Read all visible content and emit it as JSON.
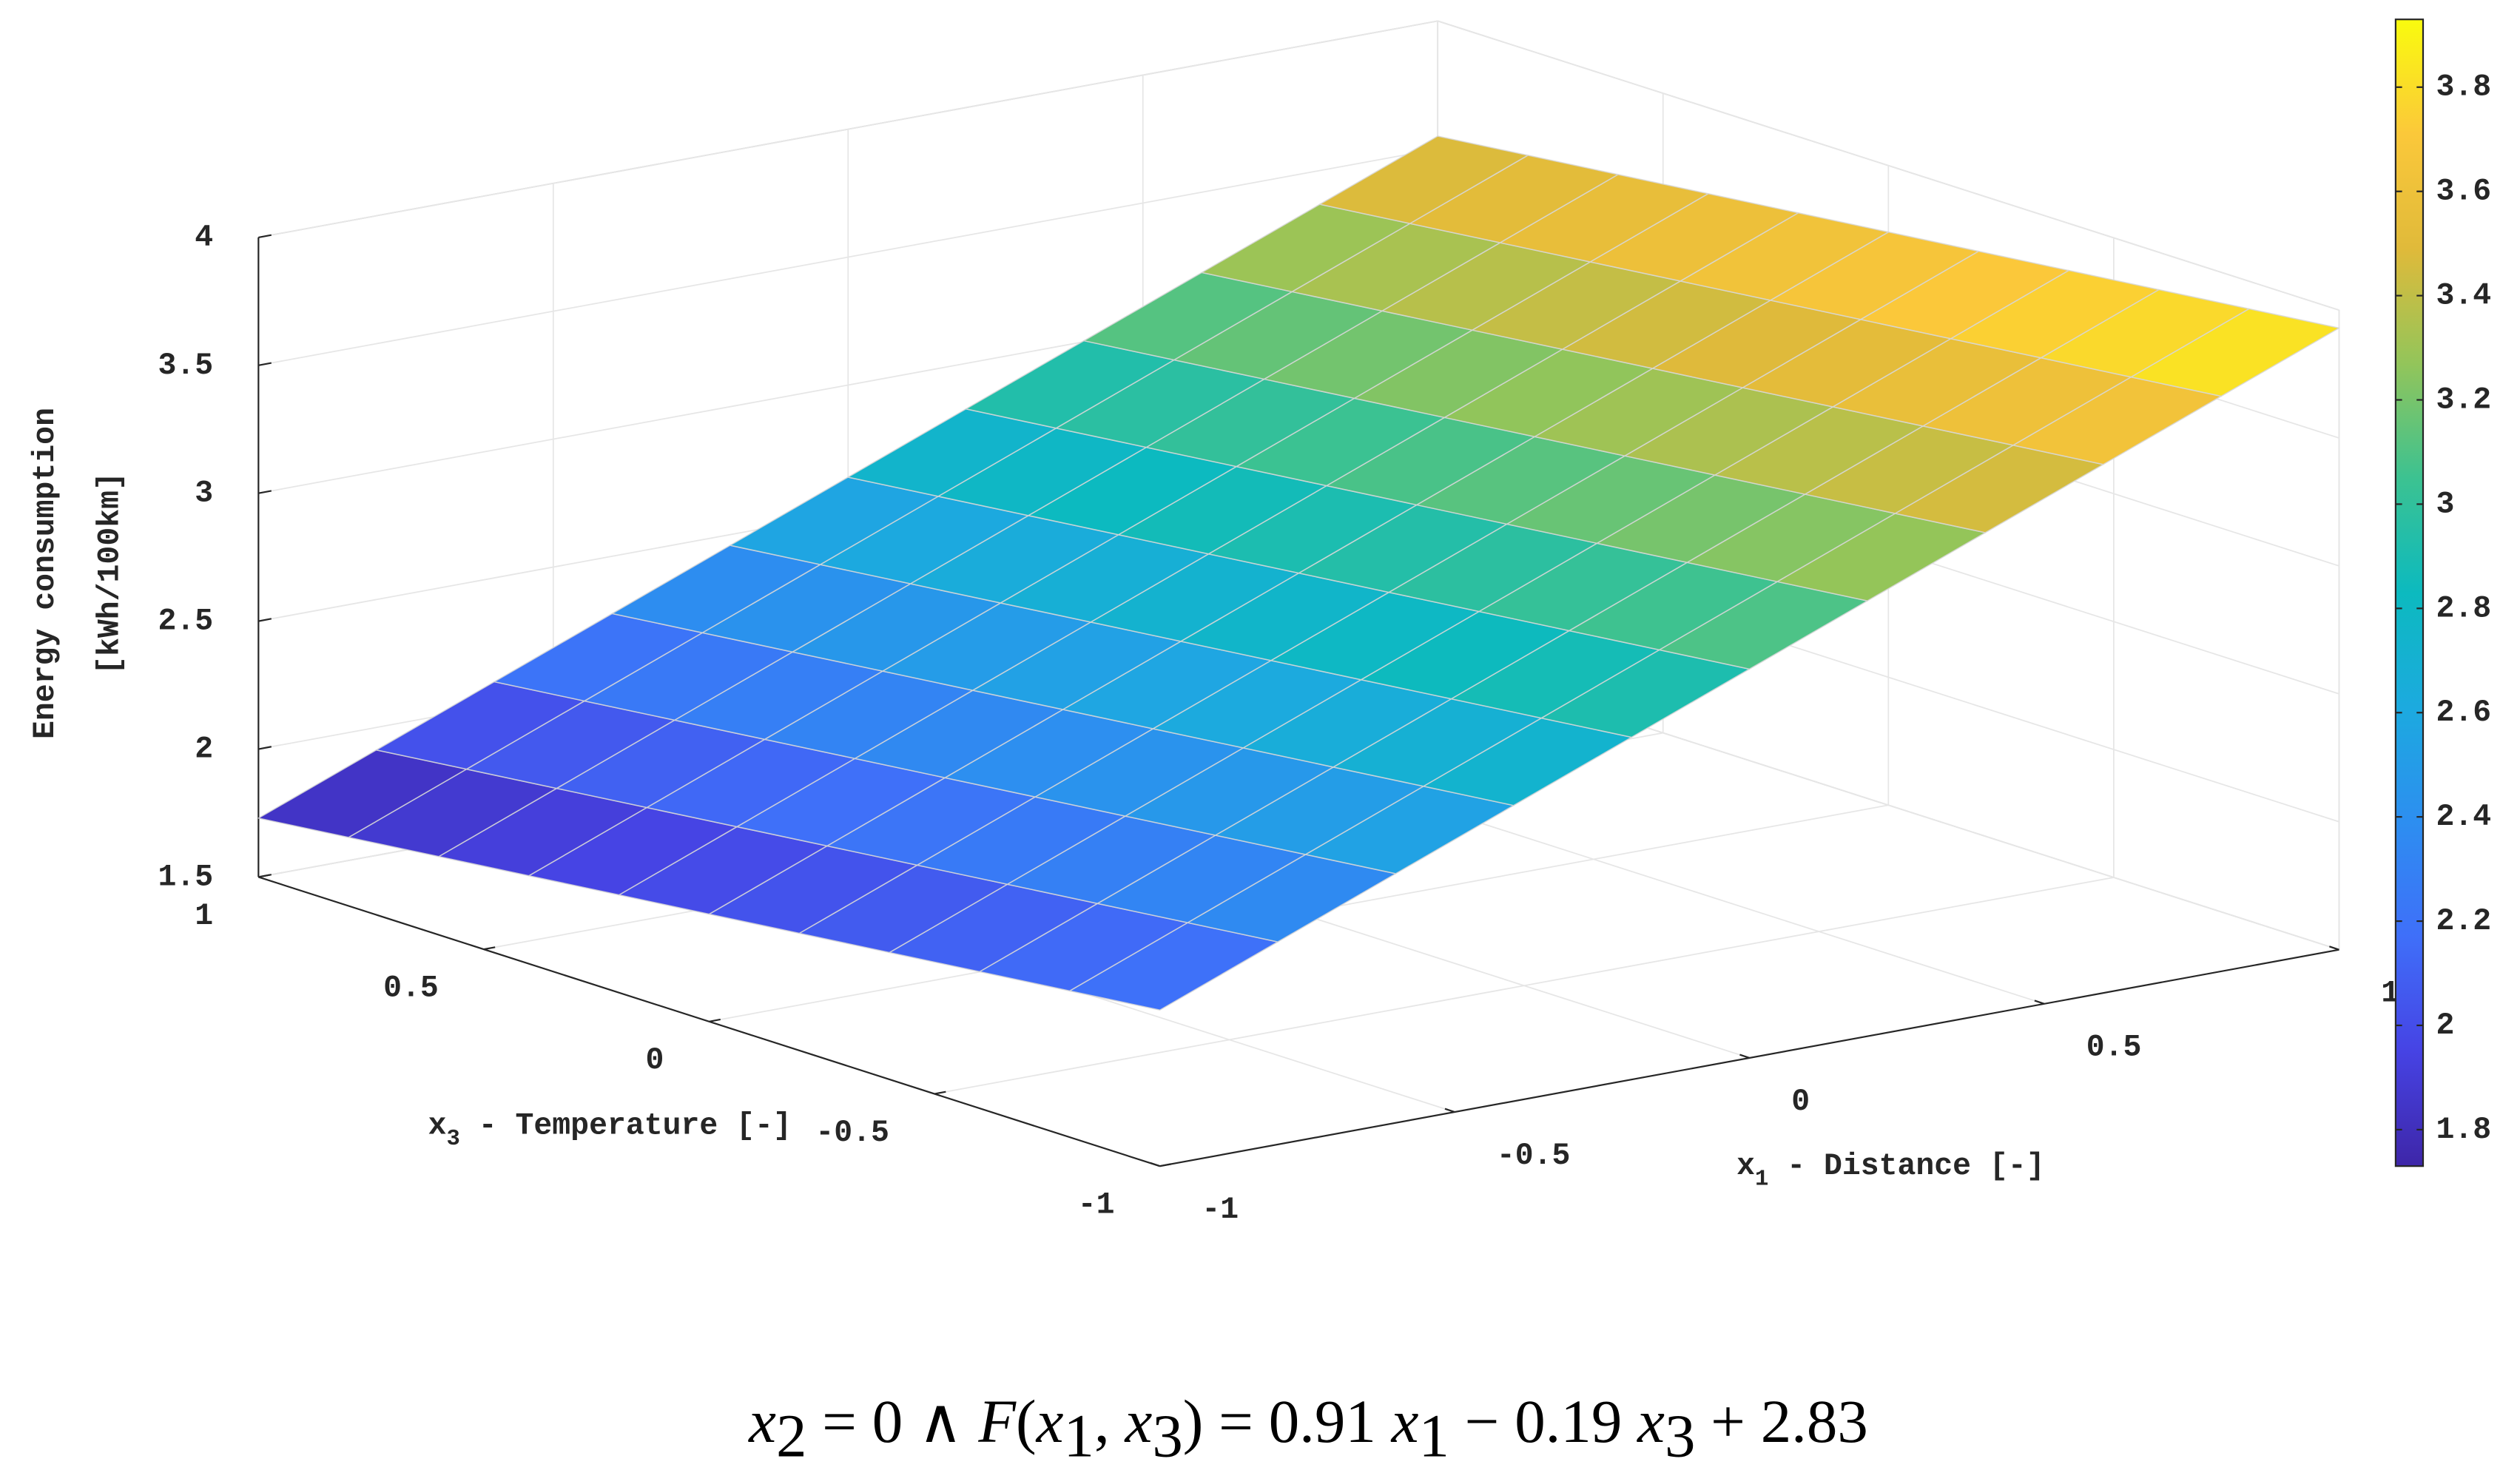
{
  "chart_data": {
    "type": "surface",
    "x": [
      -1,
      -0.8,
      -0.6,
      -0.4,
      -0.2,
      0,
      0.2,
      0.4,
      0.6,
      0.8,
      1
    ],
    "y": [
      -1,
      -0.8,
      -0.6,
      -0.4,
      -0.2,
      0,
      0.2,
      0.4,
      0.6,
      0.8,
      1
    ],
    "z": [
      [
        2.11,
        2.292,
        2.474,
        2.656,
        2.838,
        3.02,
        3.202,
        3.384,
        3.566,
        3.748,
        3.93
      ],
      [
        2.072,
        2.254,
        2.436,
        2.618,
        2.8,
        2.982,
        3.164,
        3.346,
        3.528,
        3.71,
        3.892
      ],
      [
        2.034,
        2.216,
        2.398,
        2.58,
        2.762,
        2.944,
        3.126,
        3.308,
        3.49,
        3.672,
        3.854
      ],
      [
        1.996,
        2.178,
        2.36,
        2.542,
        2.724,
        2.906,
        3.088,
        3.27,
        3.452,
        3.634,
        3.816
      ],
      [
        1.958,
        2.14,
        2.322,
        2.504,
        2.686,
        2.868,
        3.05,
        3.232,
        3.414,
        3.596,
        3.778
      ],
      [
        1.92,
        2.102,
        2.284,
        2.466,
        2.648,
        2.83,
        3.012,
        3.194,
        3.376,
        3.558,
        3.74
      ],
      [
        1.882,
        2.064,
        2.246,
        2.428,
        2.61,
        2.792,
        2.974,
        3.156,
        3.338,
        3.52,
        3.702
      ],
      [
        1.844,
        2.026,
        2.208,
        2.39,
        2.572,
        2.754,
        2.936,
        3.118,
        3.3,
        3.482,
        3.664
      ],
      [
        1.806,
        1.988,
        2.17,
        2.352,
        2.534,
        2.716,
        2.898,
        3.08,
        3.262,
        3.444,
        3.626
      ],
      [
        1.768,
        1.95,
        2.132,
        2.314,
        2.496,
        2.678,
        2.86,
        3.042,
        3.224,
        3.406,
        3.588
      ],
      [
        1.73,
        1.912,
        2.094,
        2.276,
        2.458,
        2.64,
        2.822,
        3.004,
        3.186,
        3.368,
        3.55
      ]
    ],
    "xlim": [
      -1,
      1
    ],
    "xticks": [
      -1,
      -0.5,
      0,
      0.5,
      1
    ],
    "ylim": [
      -1,
      1
    ],
    "yticks": [
      -1,
      -0.5,
      0,
      0.5,
      1
    ],
    "zlim": [
      1.5,
      4
    ],
    "zticks": [
      1.5,
      2,
      2.5,
      3,
      3.5,
      4
    ],
    "colormap": "parula",
    "clim": [
      1.73,
      3.93
    ],
    "cticks": [
      1.8,
      2,
      2.2,
      2.4,
      2.6,
      2.8,
      3,
      3.2,
      3.4,
      3.6,
      3.8
    ],
    "grid": true,
    "xlabel": [
      "x",
      "1",
      " - Distance [-]"
    ],
    "ylabel": [
      "x",
      "3",
      " - Temperature [-]"
    ],
    "zlabel": [
      "Energy consumption",
      "[kWh/100km]"
    ],
    "caption": [
      {
        "text": "x",
        "italic": true
      },
      {
        "sub": "2"
      },
      {
        "text": " = 0 ∧ "
      },
      {
        "text": "F",
        "italic": true
      },
      {
        "text": "("
      },
      {
        "text": "x",
        "italic": true
      },
      {
        "sub": "1"
      },
      {
        "text": ", "
      },
      {
        "text": "x",
        "italic": true
      },
      {
        "sub": "3"
      },
      {
        "text": ") =  0.91 "
      },
      {
        "text": "x",
        "italic": true
      },
      {
        "sub": "1"
      },
      {
        "text": " − 0.19 "
      },
      {
        "text": "x",
        "italic": true
      },
      {
        "sub": "3"
      },
      {
        "text": " + 2.83"
      }
    ]
  }
}
